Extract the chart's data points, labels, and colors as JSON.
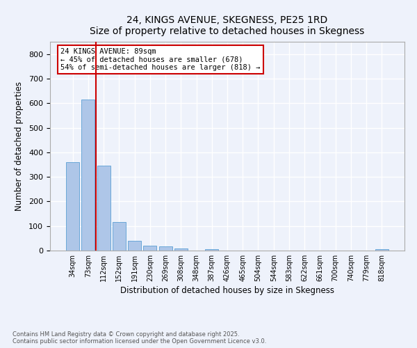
{
  "title": "24, KINGS AVENUE, SKEGNESS, PE25 1RD",
  "subtitle": "Size of property relative to detached houses in Skegness",
  "xlabel": "Distribution of detached houses by size in Skegness",
  "ylabel": "Number of detached properties",
  "categories": [
    "34sqm",
    "73sqm",
    "112sqm",
    "152sqm",
    "191sqm",
    "230sqm",
    "269sqm",
    "308sqm",
    "348sqm",
    "387sqm",
    "426sqm",
    "465sqm",
    "504sqm",
    "544sqm",
    "583sqm",
    "622sqm",
    "661sqm",
    "700sqm",
    "740sqm",
    "779sqm",
    "818sqm"
  ],
  "values": [
    360,
    615,
    345,
    117,
    40,
    20,
    16,
    9,
    0,
    5,
    0,
    0,
    0,
    0,
    0,
    0,
    0,
    0,
    0,
    0,
    7
  ],
  "bar_color": "#aec6e8",
  "bar_edge_color": "#5a9fd4",
  "vline_x": 1.5,
  "vline_color": "#cc0000",
  "annotation_text": "24 KINGS AVENUE: 89sqm\n← 45% of detached houses are smaller (678)\n54% of semi-detached houses are larger (818) →",
  "annotation_box_color": "#ffffff",
  "annotation_box_edge": "#cc0000",
  "ylim": [
    0,
    850
  ],
  "yticks": [
    0,
    100,
    200,
    300,
    400,
    500,
    600,
    700,
    800
  ],
  "footer_line1": "Contains HM Land Registry data © Crown copyright and database right 2025.",
  "footer_line2": "Contains public sector information licensed under the Open Government Licence v3.0.",
  "bg_color": "#eef2fb",
  "plot_bg_color": "#eef2fb",
  "grid_color": "#ffffff"
}
